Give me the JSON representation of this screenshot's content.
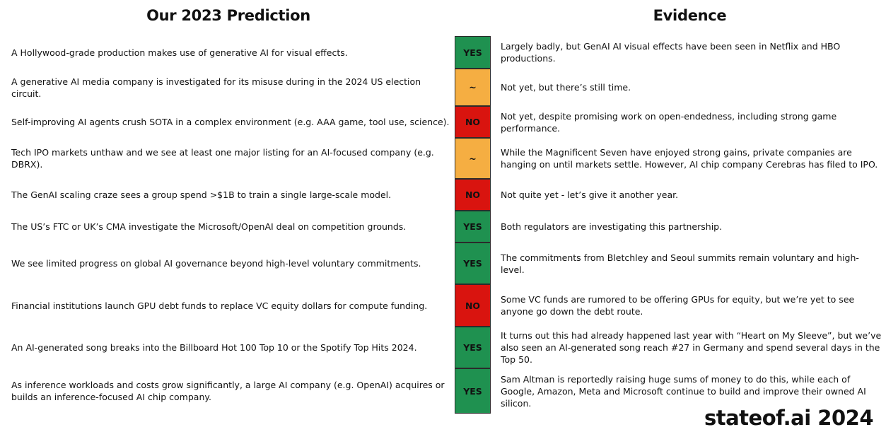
{
  "headings": {
    "left": "Our 2023 Prediction",
    "right": "Evidence"
  },
  "verdict_colors": {
    "YES": "#1f9150",
    "~": "#f5ae42",
    "NO": "#d9140f"
  },
  "rows": [
    {
      "prediction": "A Hollywood-grade production makes use of generative AI for visual effects.",
      "verdict": "YES",
      "evidence": "Largely badly, but GenAI AI visual effects have been seen in Netflix and HBO productions."
    },
    {
      "prediction": "A generative AI media company is investigated for its misuse during in the 2024 US election circuit.",
      "verdict": "~",
      "evidence": "Not yet, but there’s still time."
    },
    {
      "prediction": "Self-improving AI agents crush SOTA in a complex environment (e.g. AAA game, tool use, science).",
      "verdict": "NO",
      "evidence": "Not yet, despite promising work on open-endedness, including strong game performance."
    },
    {
      "prediction": "Tech IPO markets unthaw and we see at least one major listing for an AI-focused company (e.g. DBRX).",
      "verdict": "~",
      "evidence": "While the Magnificent Seven have enjoyed strong gains, private companies are hanging on until markets settle. However, AI chip company Cerebras has filed to IPO."
    },
    {
      "prediction": "The GenAI scaling craze sees a group spend >$1B to train a single large-scale model.",
      "verdict": "NO",
      "evidence": "Not quite yet - let’s give it another year."
    },
    {
      "prediction": "The US’s FTC or UK’s CMA investigate the Microsoft/OpenAI deal on competition grounds.",
      "verdict": "YES",
      "evidence": "Both regulators are investigating this partnership."
    },
    {
      "prediction": "We see limited progress on global AI governance beyond high-level voluntary commitments.",
      "verdict": "YES",
      "evidence": "The commitments from Bletchley and Seoul summits remain voluntary and high-level."
    },
    {
      "prediction": "Financial institutions launch GPU debt funds to replace VC equity dollars for compute funding.",
      "verdict": "NO",
      "evidence": "Some VC funds are rumored to be offering GPUs for equity, but we’re yet to see anyone go down the debt route."
    },
    {
      "prediction": "An AI-generated song breaks into the Billboard Hot 100 Top 10 or the Spotify Top Hits 2024.",
      "verdict": "YES",
      "evidence": "It turns out this had already happened last year with “Heart on My Sleeve”, but we’ve also seen an AI-generated song reach #27 in Germany and spend several days in the Top 50."
    },
    {
      "prediction": "As inference workloads and costs grow significantly, a large AI company (e.g. OpenAI) acquires or builds an inference-focused AI chip company.",
      "verdict": "YES",
      "evidence": "Sam Altman is reportedly raising huge sums of money to do this, while each of Google, Amazon, Meta and Microsoft continue to build and improve their owned AI silicon."
    }
  ],
  "brand": "stateof.ai 2024"
}
